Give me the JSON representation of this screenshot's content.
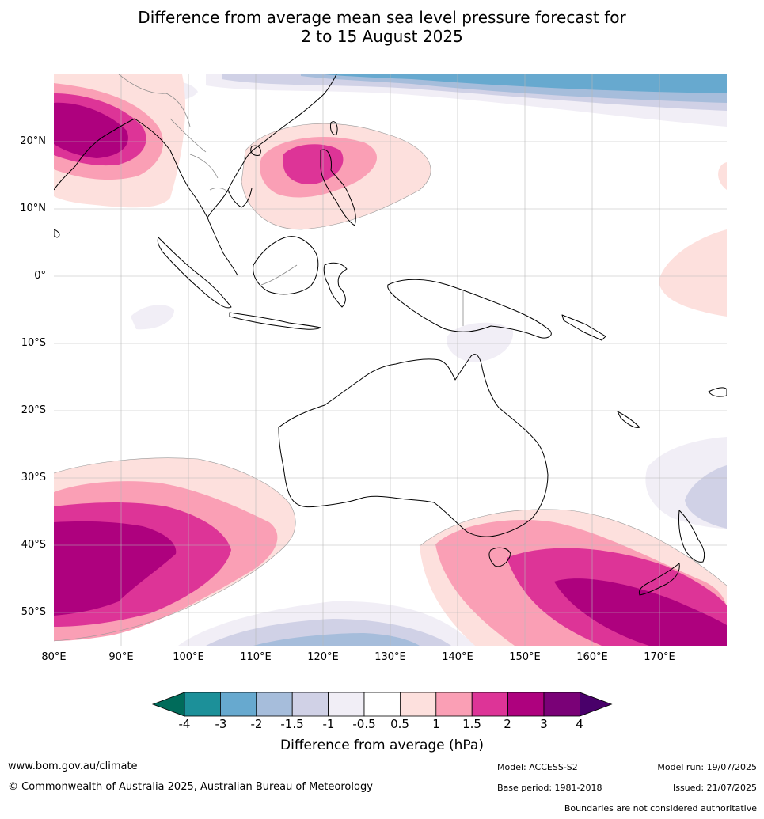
{
  "title_line1": "Difference from average mean sea level pressure forecast for",
  "title_line2": "2 to 15 August 2025",
  "lat_labels": [
    "20°N",
    "10°N",
    "0°",
    "10°S",
    "20°S",
    "30°S",
    "40°S",
    "50°S"
  ],
  "lon_labels": [
    "80°E",
    "90°E",
    "100°E",
    "110°E",
    "120°E",
    "130°E",
    "140°E",
    "150°E",
    "160°E",
    "170°E"
  ],
  "legend": {
    "title": "Difference from average (hPa)",
    "ticks": [
      "-4",
      "-3",
      "-2",
      "-1.5",
      "-1",
      "-0.5",
      "0.5",
      "1",
      "1.5",
      "2",
      "3",
      "4"
    ],
    "colors": [
      "#006b5a",
      "#1c9099",
      "#67a9cf",
      "#a6bddb",
      "#d0d1e6",
      "#f1eef6",
      "#ffffff",
      "#fde0dd",
      "#fa9fb5",
      "#dd3497",
      "#ae017e",
      "#7a0177",
      "#49006a"
    ]
  },
  "footer": {
    "website": "www.bom.gov.au/climate",
    "copyright": "© Commonwealth of Australia 2025, Australian Bureau of Meteorology",
    "model": "Model: ACCESS-S2",
    "base_period": "Base period: 1981-2018",
    "model_run": "Model run: 19/07/2025",
    "issued": "Issued: 21/07/2025",
    "boundaries": "Boundaries are not considered authoritative"
  }
}
